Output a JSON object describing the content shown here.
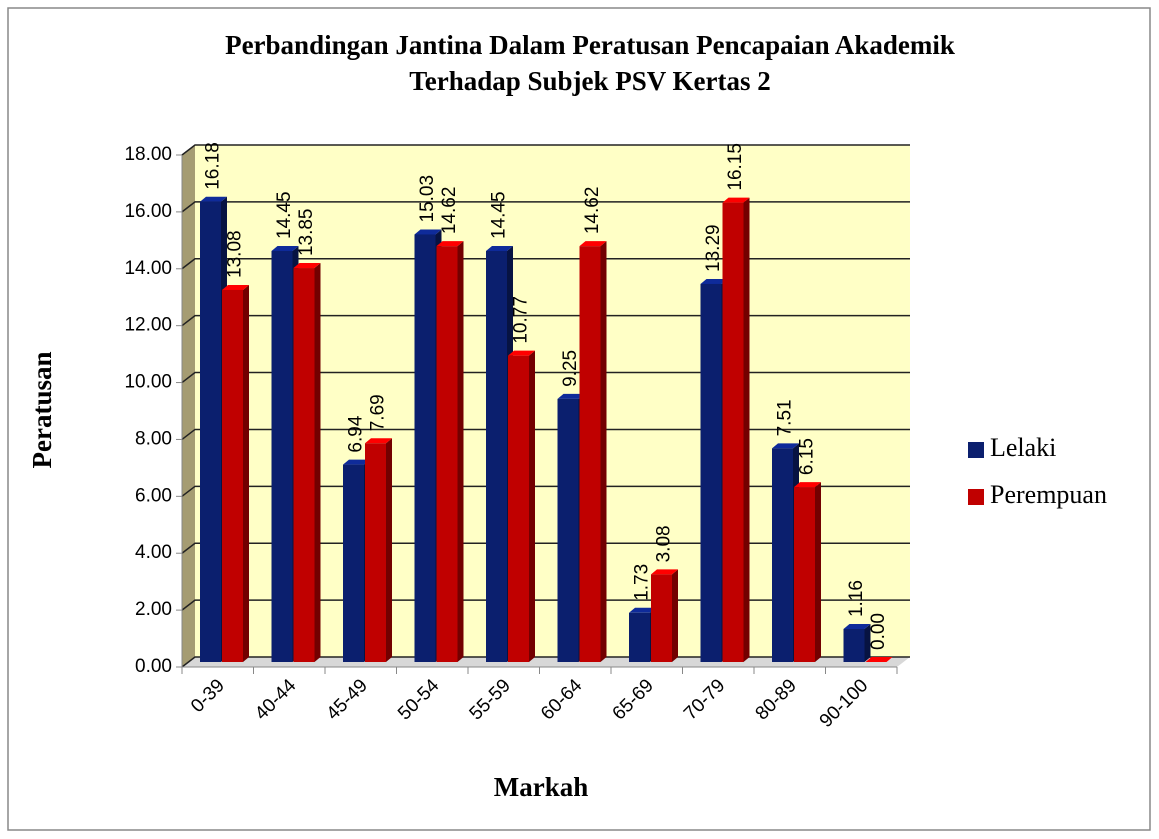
{
  "chart_data": {
    "type": "bar",
    "title": [
      "Perbandingan Jantina Dalam Peratusan Pencapaian Akademik",
      "Terhadap Subjek PSV Kertas 2"
    ],
    "x_label": "Markah",
    "y_label": "Peratusan",
    "categories": [
      "0-39",
      "40-44",
      "45-49",
      "50-54",
      "55-59",
      "60-64",
      "65-69",
      "70-79",
      "80-89",
      "90-100"
    ],
    "series": [
      {
        "name": "Lelaki",
        "color": "#0b1f6e",
        "values": [
          16.18,
          14.45,
          6.94,
          15.03,
          14.45,
          9.25,
          1.73,
          13.29,
          7.51,
          1.16
        ],
        "value_labels": [
          "16.18",
          "14.45",
          "6.94",
          "15.03",
          "14.45",
          "9.25",
          "1.73",
          "13.29",
          "7.51",
          "1.16"
        ]
      },
      {
        "name": "Perempuan",
        "color": "#c00000",
        "values": [
          13.08,
          13.85,
          7.69,
          14.62,
          10.77,
          14.62,
          3.08,
          16.15,
          6.15,
          0.0
        ],
        "value_labels": [
          "13.08",
          "13.85",
          "7.69",
          "14.62",
          "10.77",
          "14.62",
          "3.08",
          "16.15",
          "6.15",
          "0.00"
        ]
      }
    ],
    "ylim": [
      0,
      18
    ],
    "yticks": [
      {
        "value": 0,
        "label": "0.00"
      },
      {
        "value": 2,
        "label": "2.00"
      },
      {
        "value": 4,
        "label": "4.00"
      },
      {
        "value": 6,
        "label": "6.00"
      },
      {
        "value": 8,
        "label": "8.00"
      },
      {
        "value": 10,
        "label": "10.00"
      },
      {
        "value": 12,
        "label": "12.00"
      },
      {
        "value": 14,
        "label": "14.00"
      },
      {
        "value": 16,
        "label": "16.00"
      },
      {
        "value": 18,
        "label": "18.00"
      }
    ],
    "grid": true,
    "legend": "right"
  }
}
